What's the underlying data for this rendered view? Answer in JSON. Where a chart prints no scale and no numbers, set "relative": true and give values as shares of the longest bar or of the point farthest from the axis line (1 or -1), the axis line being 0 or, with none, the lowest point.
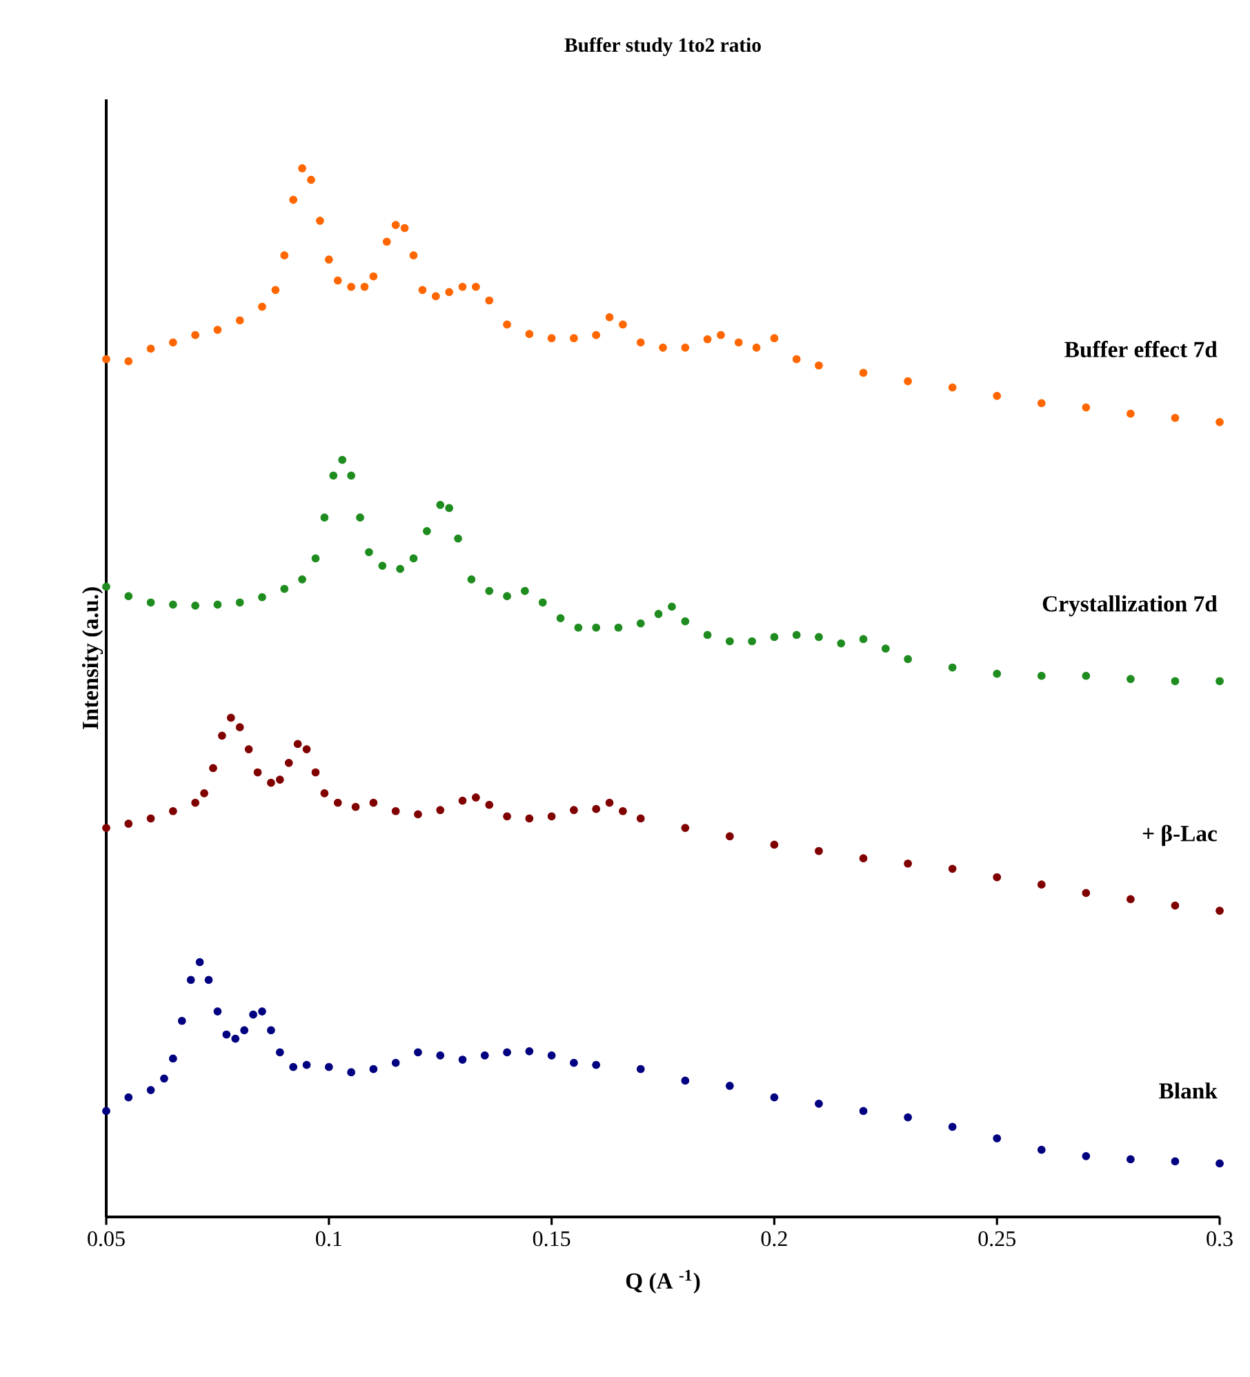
{
  "chart_data": {
    "type": "scatter",
    "title": "Buffer study 1to2 ratio",
    "xlabel": "Q (A $^{-1}$)",
    "ylabel": "Intensity (a.u.)",
    "relative": true,
    "marker": "circle",
    "xlim": [
      0.05,
      0.3
    ],
    "xticks": [
      0.05,
      0.1,
      0.15,
      0.2,
      0.25,
      0.3
    ],
    "series": [
      {
        "name": "Buffer effect 7d",
        "color": "#ff6600",
        "x": [
          0.05,
          0.055,
          0.06,
          0.065,
          0.07,
          0.075,
          0.08,
          0.085,
          0.088,
          0.09,
          0.092,
          0.094,
          0.096,
          0.098,
          0.1,
          0.102,
          0.105,
          0.108,
          0.11,
          0.113,
          0.115,
          0.117,
          0.119,
          0.121,
          0.124,
          0.127,
          0.13,
          0.133,
          0.136,
          0.14,
          0.145,
          0.15,
          0.155,
          0.16,
          0.163,
          0.166,
          0.17,
          0.175,
          0.18,
          0.185,
          0.188,
          0.192,
          0.196,
          0.2,
          0.205,
          0.21,
          0.22,
          0.23,
          0.24,
          0.25,
          0.26,
          0.27,
          0.28,
          0.29,
          0.3
        ],
        "values": [
          0.818,
          0.816,
          0.828,
          0.834,
          0.841,
          0.846,
          0.855,
          0.868,
          0.884,
          0.917,
          0.97,
          1.0,
          0.989,
          0.95,
          0.913,
          0.893,
          0.887,
          0.887,
          0.897,
          0.93,
          0.946,
          0.943,
          0.917,
          0.884,
          0.878,
          0.882,
          0.887,
          0.887,
          0.874,
          0.851,
          0.842,
          0.838,
          0.838,
          0.841,
          0.858,
          0.851,
          0.834,
          0.829,
          0.829,
          0.837,
          0.841,
          0.834,
          0.829,
          0.838,
          0.818,
          0.812,
          0.805,
          0.797,
          0.791,
          0.783,
          0.776,
          0.772,
          0.766,
          0.762,
          0.758
        ]
      },
      {
        "name": "Crystallization 7d",
        "color": "#1e8c1e",
        "x": [
          0.05,
          0.055,
          0.06,
          0.065,
          0.07,
          0.075,
          0.08,
          0.085,
          0.09,
          0.094,
          0.097,
          0.099,
          0.101,
          0.103,
          0.105,
          0.107,
          0.109,
          0.112,
          0.116,
          0.119,
          0.122,
          0.125,
          0.127,
          0.129,
          0.132,
          0.136,
          0.14,
          0.144,
          0.148,
          0.152,
          0.156,
          0.16,
          0.165,
          0.17,
          0.174,
          0.177,
          0.18,
          0.185,
          0.19,
          0.195,
          0.2,
          0.205,
          0.21,
          0.215,
          0.22,
          0.225,
          0.23,
          0.24,
          0.25,
          0.26,
          0.27,
          0.28,
          0.29,
          0.3
        ],
        "values": [
          0.601,
          0.592,
          0.586,
          0.584,
          0.583,
          0.584,
          0.586,
          0.591,
          0.599,
          0.608,
          0.628,
          0.667,
          0.707,
          0.722,
          0.707,
          0.667,
          0.634,
          0.621,
          0.618,
          0.628,
          0.654,
          0.679,
          0.676,
          0.647,
          0.608,
          0.597,
          0.592,
          0.597,
          0.586,
          0.571,
          0.562,
          0.562,
          0.562,
          0.566,
          0.575,
          0.582,
          0.568,
          0.555,
          0.549,
          0.549,
          0.553,
          0.555,
          0.553,
          0.547,
          0.551,
          0.542,
          0.532,
          0.524,
          0.518,
          0.516,
          0.516,
          0.513,
          0.511,
          0.511
        ]
      },
      {
        "name": "+ β-Lac",
        "color": "#800000",
        "x": [
          0.05,
          0.055,
          0.06,
          0.065,
          0.07,
          0.072,
          0.074,
          0.076,
          0.078,
          0.08,
          0.082,
          0.084,
          0.087,
          0.089,
          0.091,
          0.093,
          0.095,
          0.097,
          0.099,
          0.102,
          0.106,
          0.11,
          0.115,
          0.12,
          0.125,
          0.13,
          0.133,
          0.136,
          0.14,
          0.145,
          0.15,
          0.155,
          0.16,
          0.163,
          0.166,
          0.17,
          0.18,
          0.19,
          0.2,
          0.21,
          0.22,
          0.23,
          0.24,
          0.25,
          0.26,
          0.27,
          0.28,
          0.29,
          0.3
        ],
        "values": [
          0.371,
          0.375,
          0.38,
          0.387,
          0.395,
          0.404,
          0.428,
          0.459,
          0.476,
          0.467,
          0.446,
          0.424,
          0.414,
          0.417,
          0.433,
          0.451,
          0.446,
          0.424,
          0.404,
          0.395,
          0.391,
          0.395,
          0.387,
          0.384,
          0.388,
          0.397,
          0.4,
          0.393,
          0.382,
          0.38,
          0.382,
          0.388,
          0.389,
          0.395,
          0.387,
          0.38,
          0.371,
          0.363,
          0.355,
          0.349,
          0.342,
          0.337,
          0.332,
          0.324,
          0.317,
          0.309,
          0.303,
          0.297,
          0.292
        ]
      },
      {
        "name": "Blank",
        "color": "#000080",
        "x": [
          0.05,
          0.055,
          0.06,
          0.063,
          0.065,
          0.067,
          0.069,
          0.071,
          0.073,
          0.075,
          0.077,
          0.079,
          0.081,
          0.083,
          0.085,
          0.087,
          0.089,
          0.092,
          0.095,
          0.1,
          0.105,
          0.11,
          0.115,
          0.12,
          0.125,
          0.13,
          0.135,
          0.14,
          0.145,
          0.15,
          0.155,
          0.16,
          0.17,
          0.18,
          0.19,
          0.2,
          0.21,
          0.22,
          0.23,
          0.24,
          0.25,
          0.26,
          0.27,
          0.28,
          0.29,
          0.3
        ],
        "values": [
          0.101,
          0.114,
          0.121,
          0.132,
          0.151,
          0.187,
          0.226,
          0.243,
          0.226,
          0.196,
          0.174,
          0.17,
          0.178,
          0.193,
          0.196,
          0.178,
          0.157,
          0.143,
          0.145,
          0.143,
          0.138,
          0.141,
          0.147,
          0.157,
          0.154,
          0.15,
          0.154,
          0.157,
          0.158,
          0.154,
          0.147,
          0.145,
          0.141,
          0.13,
          0.125,
          0.114,
          0.108,
          0.101,
          0.095,
          0.086,
          0.075,
          0.064,
          0.058,
          0.055,
          0.053,
          0.051
        ]
      }
    ]
  }
}
